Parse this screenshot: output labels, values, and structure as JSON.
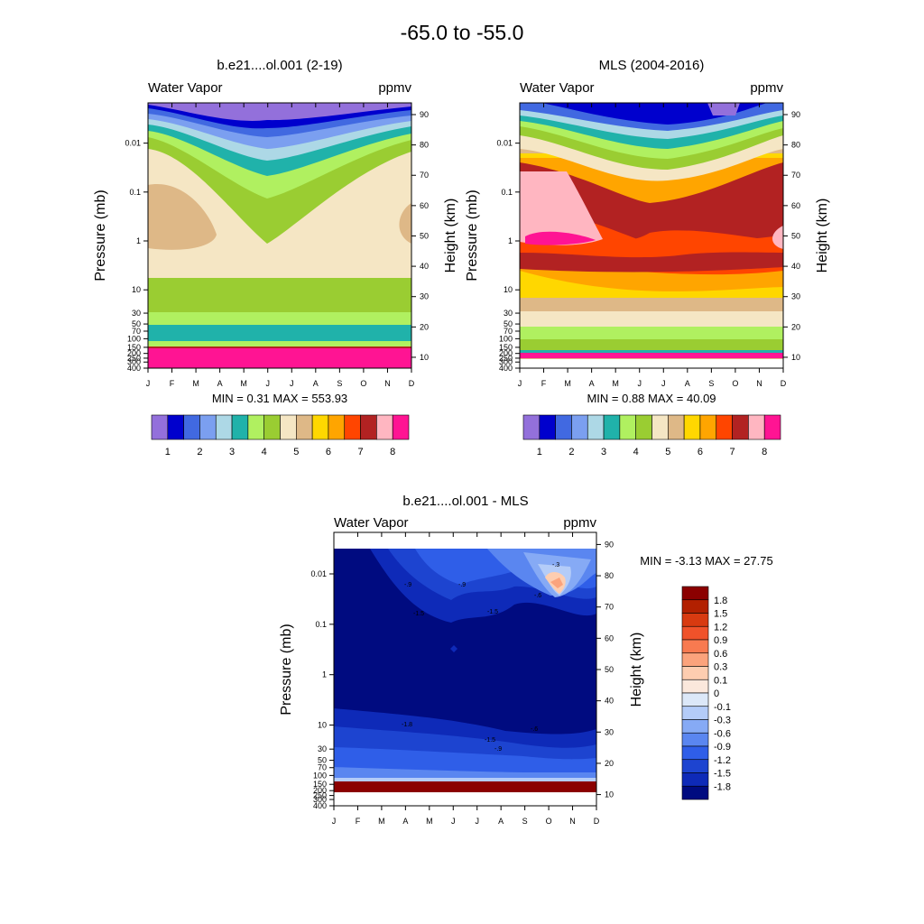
{
  "page_title": "-65.0 to -55.0",
  "months": [
    "J",
    "F",
    "M",
    "A",
    "M",
    "J",
    "J",
    "A",
    "S",
    "O",
    "N",
    "D"
  ],
  "pressure_ticks": [
    "0.01",
    "0.1",
    "1",
    "10",
    "30",
    "50",
    "70",
    "100",
    "150",
    "200",
    "250",
    "300",
    "400"
  ],
  "height_ticks": [
    "90",
    "80",
    "70",
    "60",
    "50",
    "40",
    "30",
    "20",
    "10"
  ],
  "y_label_pressure": "Pressure (mb)",
  "y_label_height": "Height (km)",
  "panels": {
    "model": {
      "title": "b.e21....ol.001 (2-19)",
      "left_label": "Water Vapor",
      "right_label": "ppmv",
      "stats": "MIN =   0.31  MAX = 553.93"
    },
    "mls": {
      "title": "MLS (2004-2016)",
      "left_label": "Water Vapor",
      "right_label": "ppmv",
      "stats": "MIN =  0.88  MAX = 40.09"
    },
    "diff": {
      "title": "b.e21....ol.001 - MLS",
      "left_label": "Water Vapor",
      "right_label": "ppmv",
      "stats": "MIN =  -3.13  MAX =  27.75"
    }
  },
  "chart_data": [
    {
      "type": "heatmap",
      "name": "model",
      "title": "b.e21....ol.001 (2-19)",
      "xlabel": "",
      "ylabel": "Pressure (mb)",
      "ylabel_right": "Height (km)",
      "x": [
        "J",
        "F",
        "M",
        "A",
        "M",
        "J",
        "J",
        "A",
        "S",
        "O",
        "N",
        "D"
      ],
      "levels_ppmv_colorbar": [
        "1",
        "2",
        "3",
        "4",
        "5",
        "6",
        "7",
        "8"
      ],
      "colors": [
        "#9370db",
        "#0000cd",
        "#4169e1",
        "#7b9ff0",
        "#add8e6",
        "#20b2aa",
        "#b0f060",
        "#9acd32",
        "#f5e6c4",
        "#deb887",
        "#ffd700",
        "#ffa500",
        "#ff4500",
        "#b22222",
        "#ffb6c1",
        "#ff1493"
      ],
      "min": 0.31,
      "max": 553.93,
      "boundaries": [
        {
          "level": "top (purple/blue)",
          "altitude_km_by_month": [
            88,
            86,
            84,
            82,
            80,
            79,
            80,
            80,
            81,
            82,
            85,
            87
          ]
        },
        {
          "level": "light-green",
          "altitude_km_by_month": [
            80,
            76,
            72,
            68,
            65,
            63,
            64,
            66,
            70,
            74,
            78,
            80
          ]
        },
        {
          "level": "olive",
          "altitude_km_by_month": [
            78,
            72,
            66,
            60,
            54,
            50,
            52,
            56,
            62,
            68,
            74,
            78
          ]
        },
        {
          "level": "cream",
          "altitude_km_by_month": [
            33,
            33,
            33,
            32,
            32,
            31,
            31,
            31,
            31,
            32,
            33,
            33
          ]
        },
        {
          "level": "olive-lower",
          "altitude_km_by_month": [
            22,
            22,
            22,
            22,
            22,
            22,
            22,
            22,
            22,
            22,
            22,
            22
          ]
        },
        {
          "level": "teal",
          "altitude_km_by_month": [
            14,
            14,
            14,
            14,
            14,
            14,
            14,
            14,
            14,
            14,
            14,
            14
          ]
        },
        {
          "level": "magenta",
          "altitude_km_by_month": [
            12,
            12,
            12,
            12,
            12,
            12,
            12,
            12,
            12,
            12,
            12,
            12
          ]
        }
      ]
    },
    {
      "type": "heatmap",
      "name": "mls",
      "title": "MLS (2004-2016)",
      "xlabel": "",
      "ylabel": "Pressure (mb)",
      "ylabel_right": "Height (km)",
      "x": [
        "J",
        "F",
        "M",
        "A",
        "M",
        "J",
        "J",
        "A",
        "S",
        "O",
        "N",
        "D"
      ],
      "levels_ppmv_colorbar": [
        "1",
        "2",
        "3",
        "4",
        "5",
        "6",
        "7",
        "8"
      ],
      "colors": [
        "#9370db",
        "#0000cd",
        "#4169e1",
        "#7b9ff0",
        "#add8e6",
        "#20b2aa",
        "#b0f060",
        "#9acd32",
        "#f5e6c4",
        "#deb887",
        "#ffd700",
        "#ffa500",
        "#ff4500",
        "#b22222",
        "#ffb6c1",
        "#ff1493"
      ],
      "min": 0.88,
      "max": 40.09
    },
    {
      "type": "heatmap",
      "name": "difference",
      "title": "b.e21....ol.001 - MLS",
      "xlabel": "",
      "ylabel": "Pressure (mb)",
      "ylabel_right": "Height (km)",
      "x": [
        "J",
        "F",
        "M",
        "A",
        "M",
        "J",
        "J",
        "A",
        "S",
        "O",
        "N",
        "D"
      ],
      "levels": [
        "1.8",
        "1.5",
        "1.2",
        "0.9",
        "0.6",
        "0.3",
        "0.1",
        "0",
        "-0.1",
        "-0.3",
        "-0.6",
        "-0.9",
        "-1.2",
        "-1.5",
        "-1.8"
      ],
      "colors": [
        "#8b0000",
        "#b22000",
        "#d83a10",
        "#f0522a",
        "#f87a50",
        "#fba37c",
        "#fdcdb0",
        "#fbe8dc",
        "#dce8f8",
        "#b4ccf8",
        "#86aaf5",
        "#5a86f0",
        "#2f5ee8",
        "#1d44d0",
        "#0e2ab8",
        "#000b80"
      ],
      "min": -3.13,
      "max": 27.75,
      "contour_labels": [
        "-.9",
        "-1.5",
        "-1.8",
        "-.9",
        "-.3",
        "-.6",
        "-1.5",
        "-.6",
        "-.9",
        "-1.5"
      ]
    }
  ]
}
